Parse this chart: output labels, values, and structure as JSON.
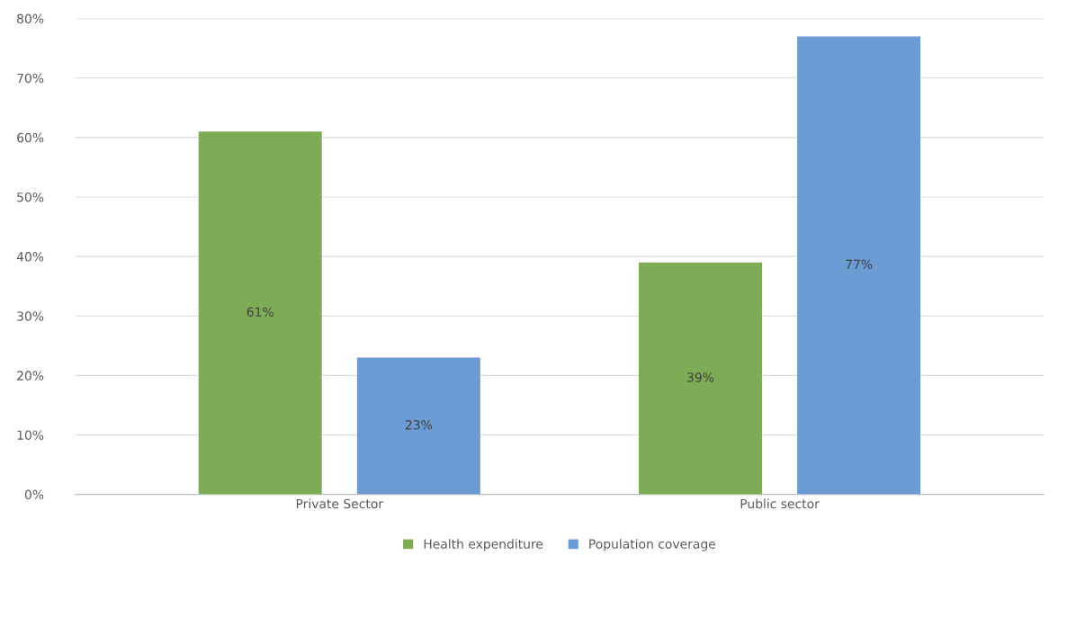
{
  "chart_data": {
    "type": "bar",
    "categories": [
      "Private Sector",
      "Public sector"
    ],
    "series": [
      {
        "name": "Health expenditure",
        "color": "#7eab55",
        "values": [
          61,
          39
        ],
        "value_labels": [
          "61%",
          "39%"
        ]
      },
      {
        "name": "Population coverage",
        "color": "#6a9bd3",
        "values": [
          23,
          77
        ],
        "value_labels": [
          "23%",
          "77%"
        ]
      }
    ],
    "ylim": [
      0,
      80
    ],
    "yticks": [
      {
        "value": 0,
        "label": "0%"
      },
      {
        "value": 10,
        "label": "10%"
      },
      {
        "value": 20,
        "label": "20%"
      },
      {
        "value": 30,
        "label": "30%"
      },
      {
        "value": 40,
        "label": "40%"
      },
      {
        "value": 50,
        "label": "50%"
      },
      {
        "value": 60,
        "label": "60%"
      },
      {
        "value": 70,
        "label": "70%"
      },
      {
        "value": 80,
        "label": "80%"
      }
    ],
    "grid": "y",
    "legend": "bottom"
  }
}
